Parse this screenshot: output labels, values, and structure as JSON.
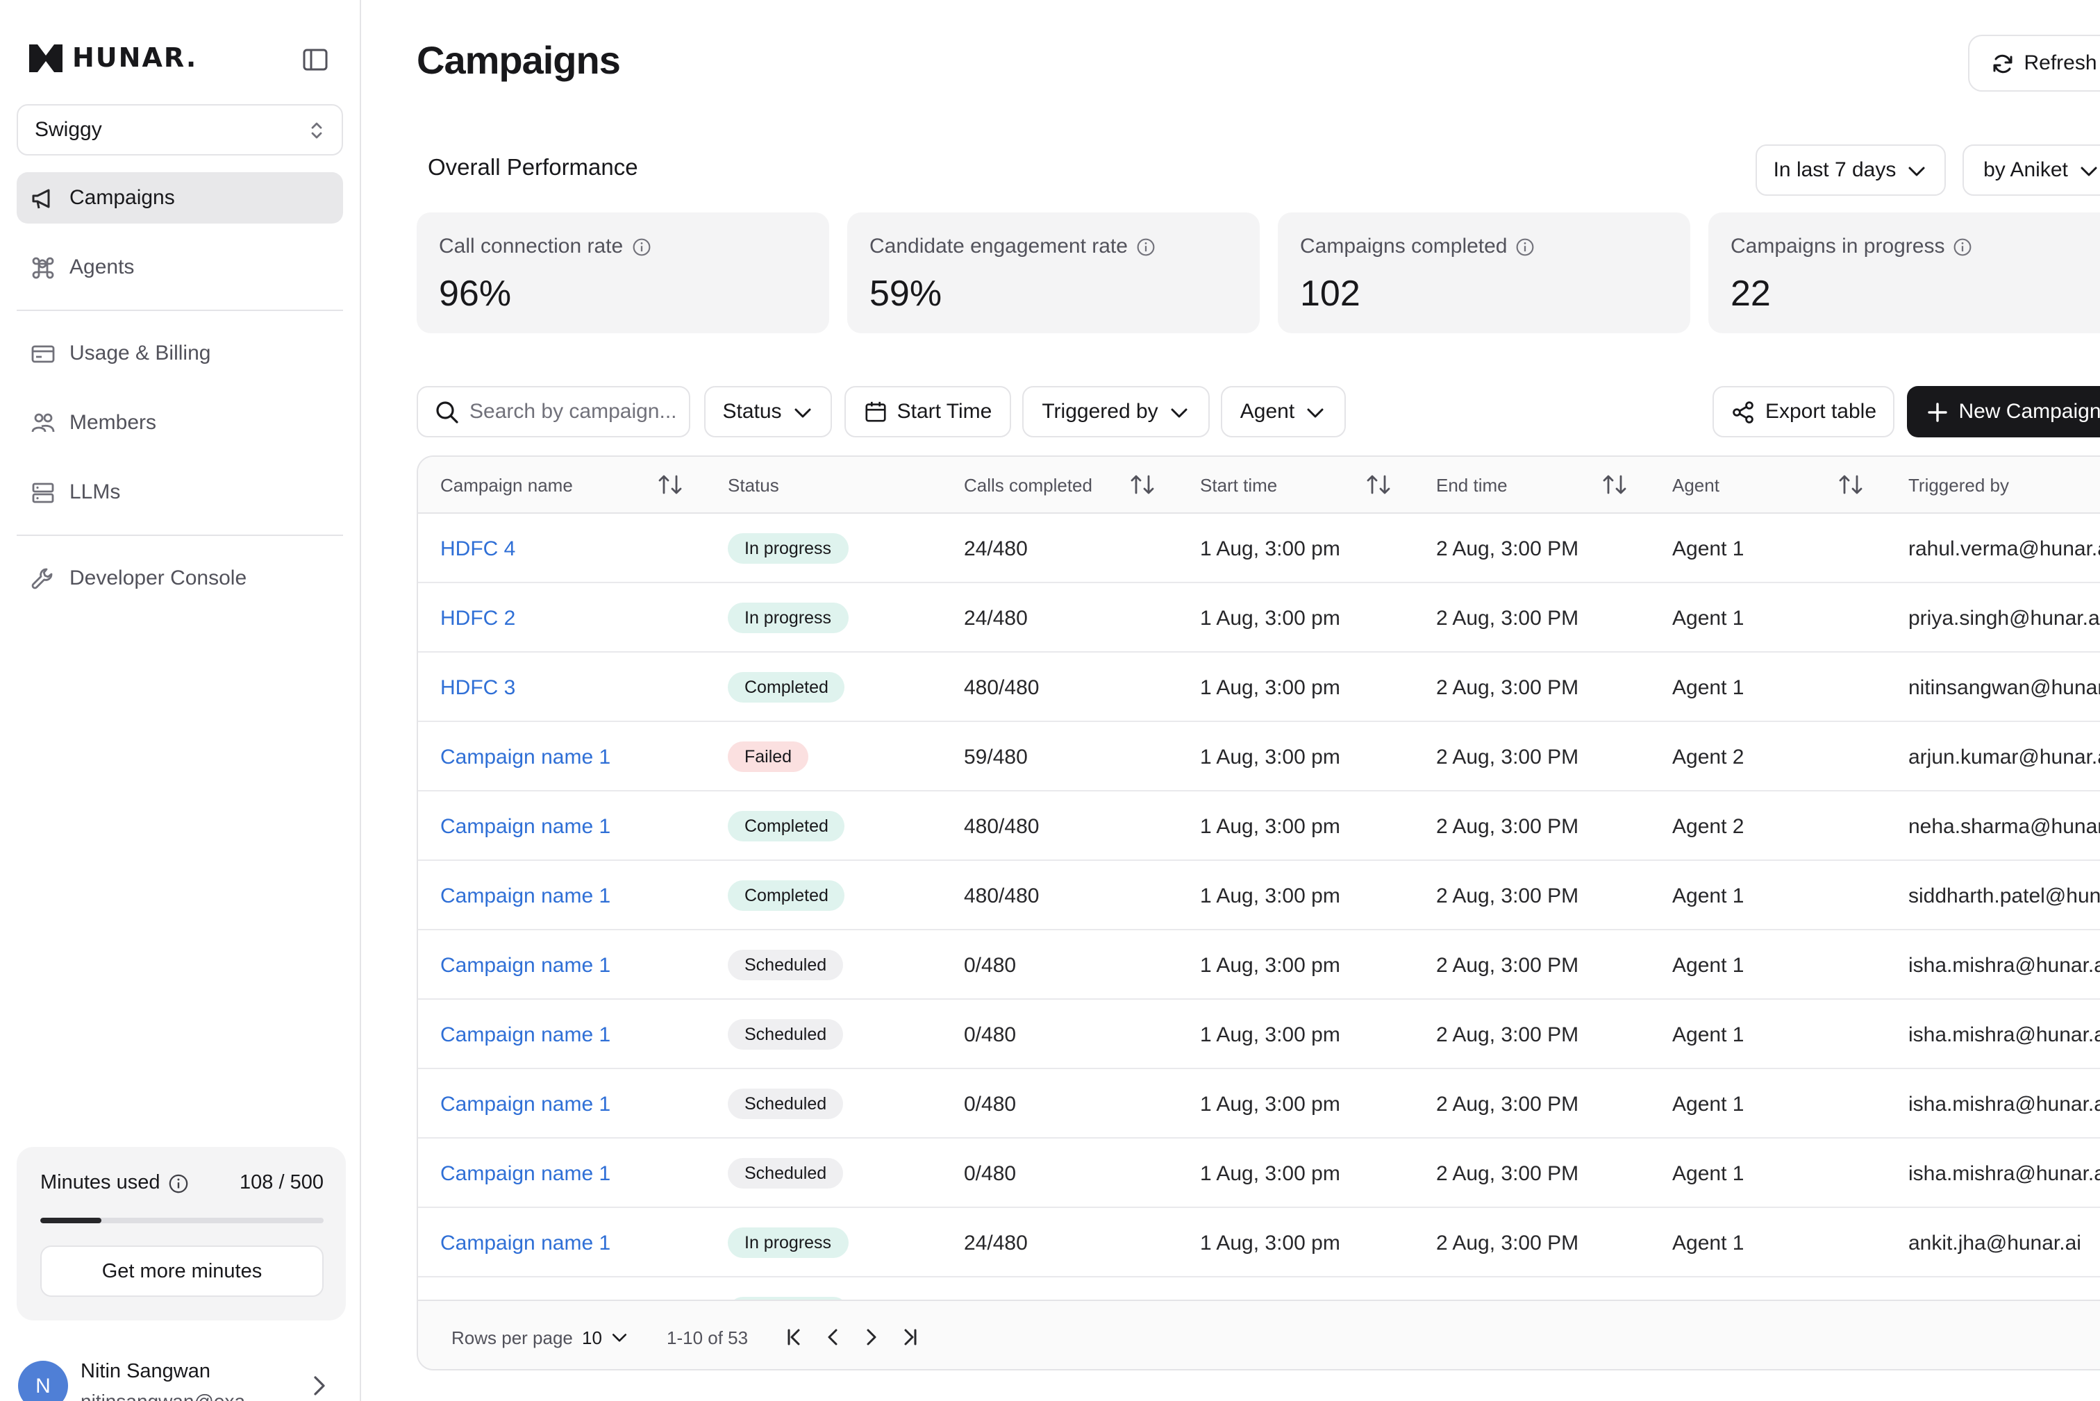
{
  "sidebar": {
    "brand": "HUNAR.",
    "org": "Swiggy",
    "nav": [
      {
        "label": "Campaigns",
        "icon": "megaphone-icon",
        "active": true
      },
      {
        "label": "Agents",
        "icon": "command-icon",
        "active": false
      },
      {
        "label": "Usage & Billing",
        "icon": "credit-card-icon",
        "active": false
      },
      {
        "label": "Members",
        "icon": "users-icon",
        "active": false
      },
      {
        "label": "LLMs",
        "icon": "server-icon",
        "active": false
      },
      {
        "label": "Developer Console",
        "icon": "wrench-icon",
        "active": false
      }
    ],
    "minutes": {
      "label": "Minutes used",
      "value": "108 / 500",
      "used_fraction": 0.216,
      "cta": "Get more minutes"
    },
    "user": {
      "initial": "N",
      "name": "Nitin Sangwan",
      "email": "nitinsangwan@exa..."
    }
  },
  "header": {
    "title": "Campaigns",
    "refresh_label": "Refresh"
  },
  "performance": {
    "title": "Overall Performance",
    "range_filter": "In last 7 days",
    "owner_filter": "by Aniket",
    "stats": [
      {
        "label": "Call connection rate",
        "value": "96%"
      },
      {
        "label": "Candidate engagement rate",
        "value": "59%"
      },
      {
        "label": "Campaigns completed",
        "value": "102"
      },
      {
        "label": "Campaigns in progress",
        "value": "22"
      }
    ]
  },
  "toolbar": {
    "search_placeholder": "Search by campaign...",
    "status_label": "Status",
    "start_time_label": "Start Time",
    "triggered_by_label": "Triggered by",
    "agent_label": "Agent",
    "export_label": "Export table",
    "new_campaign_label": "New Campaign"
  },
  "table": {
    "columns": [
      "Campaign name",
      "Status",
      "Calls completed",
      "Start time",
      "End time",
      "Agent",
      "Triggered by"
    ],
    "rows": [
      {
        "name": "HDFC 4",
        "status": "In progress",
        "calls": "24/480",
        "start": "1 Aug, 3:00 pm",
        "end": "2 Aug, 3:00 PM",
        "agent": "Agent 1",
        "triggered_by": "rahul.verma@hunar.ai"
      },
      {
        "name": "HDFC 2",
        "status": "In progress",
        "calls": "24/480",
        "start": "1 Aug, 3:00 pm",
        "end": "2 Aug, 3:00 PM",
        "agent": "Agent 1",
        "triggered_by": "priya.singh@hunar.ai"
      },
      {
        "name": "HDFC 3",
        "status": "Completed",
        "calls": "480/480",
        "start": "1 Aug, 3:00 pm",
        "end": "2 Aug, 3:00 PM",
        "agent": "Agent 1",
        "triggered_by": "nitinsangwan@hunar.ai"
      },
      {
        "name": "Campaign name 1",
        "status": "Failed",
        "calls": "59/480",
        "start": "1 Aug, 3:00 pm",
        "end": "2 Aug, 3:00 PM",
        "agent": "Agent 2",
        "triggered_by": "arjun.kumar@hunar.ai"
      },
      {
        "name": "Campaign name 1",
        "status": "Completed",
        "calls": "480/480",
        "start": "1 Aug, 3:00 pm",
        "end": "2 Aug, 3:00 PM",
        "agent": "Agent 2",
        "triggered_by": "neha.sharma@hunar.ai"
      },
      {
        "name": "Campaign name 1",
        "status": "Completed",
        "calls": "480/480",
        "start": "1 Aug, 3:00 pm",
        "end": "2 Aug, 3:00 PM",
        "agent": "Agent 1",
        "triggered_by": "siddharth.patel@hunar.ai"
      },
      {
        "name": "Campaign name 1",
        "status": "Scheduled",
        "calls": "0/480",
        "start": "1 Aug, 3:00 pm",
        "end": "2 Aug, 3:00 PM",
        "agent": "Agent 1",
        "triggered_by": "isha.mishra@hunar.ai"
      },
      {
        "name": "Campaign name 1",
        "status": "Scheduled",
        "calls": "0/480",
        "start": "1 Aug, 3:00 pm",
        "end": "2 Aug, 3:00 PM",
        "agent": "Agent 1",
        "triggered_by": "isha.mishra@hunar.ai"
      },
      {
        "name": "Campaign name 1",
        "status": "Scheduled",
        "calls": "0/480",
        "start": "1 Aug, 3:00 pm",
        "end": "2 Aug, 3:00 PM",
        "agent": "Agent 1",
        "triggered_by": "isha.mishra@hunar.ai"
      },
      {
        "name": "Campaign name 1",
        "status": "Scheduled",
        "calls": "0/480",
        "start": "1 Aug, 3:00 pm",
        "end": "2 Aug, 3:00 PM",
        "agent": "Agent 1",
        "triggered_by": "isha.mishra@hunar.ai"
      },
      {
        "name": "Campaign name 1",
        "status": "In progress",
        "calls": "24/480",
        "start": "1 Aug, 3:00 pm",
        "end": "2 Aug, 3:00 PM",
        "agent": "Agent 1",
        "triggered_by": "ankit.jha@hunar.ai"
      },
      {
        "name": "",
        "status": "In progress",
        "calls": "",
        "start": "",
        "end": "",
        "agent": "",
        "triggered_by": ""
      }
    ],
    "pagination": {
      "rows_per_page_label": "Rows per page",
      "rows_per_page": "10",
      "range": "1-10 of 53"
    }
  },
  "colors": {
    "link": "#2f6fd6",
    "primary_button": "#18181b",
    "badge_success": "#dff3ee",
    "badge_failed": "#fbe0e0",
    "badge_neutral": "#efeff1",
    "avatar": "#4f7fd6"
  }
}
